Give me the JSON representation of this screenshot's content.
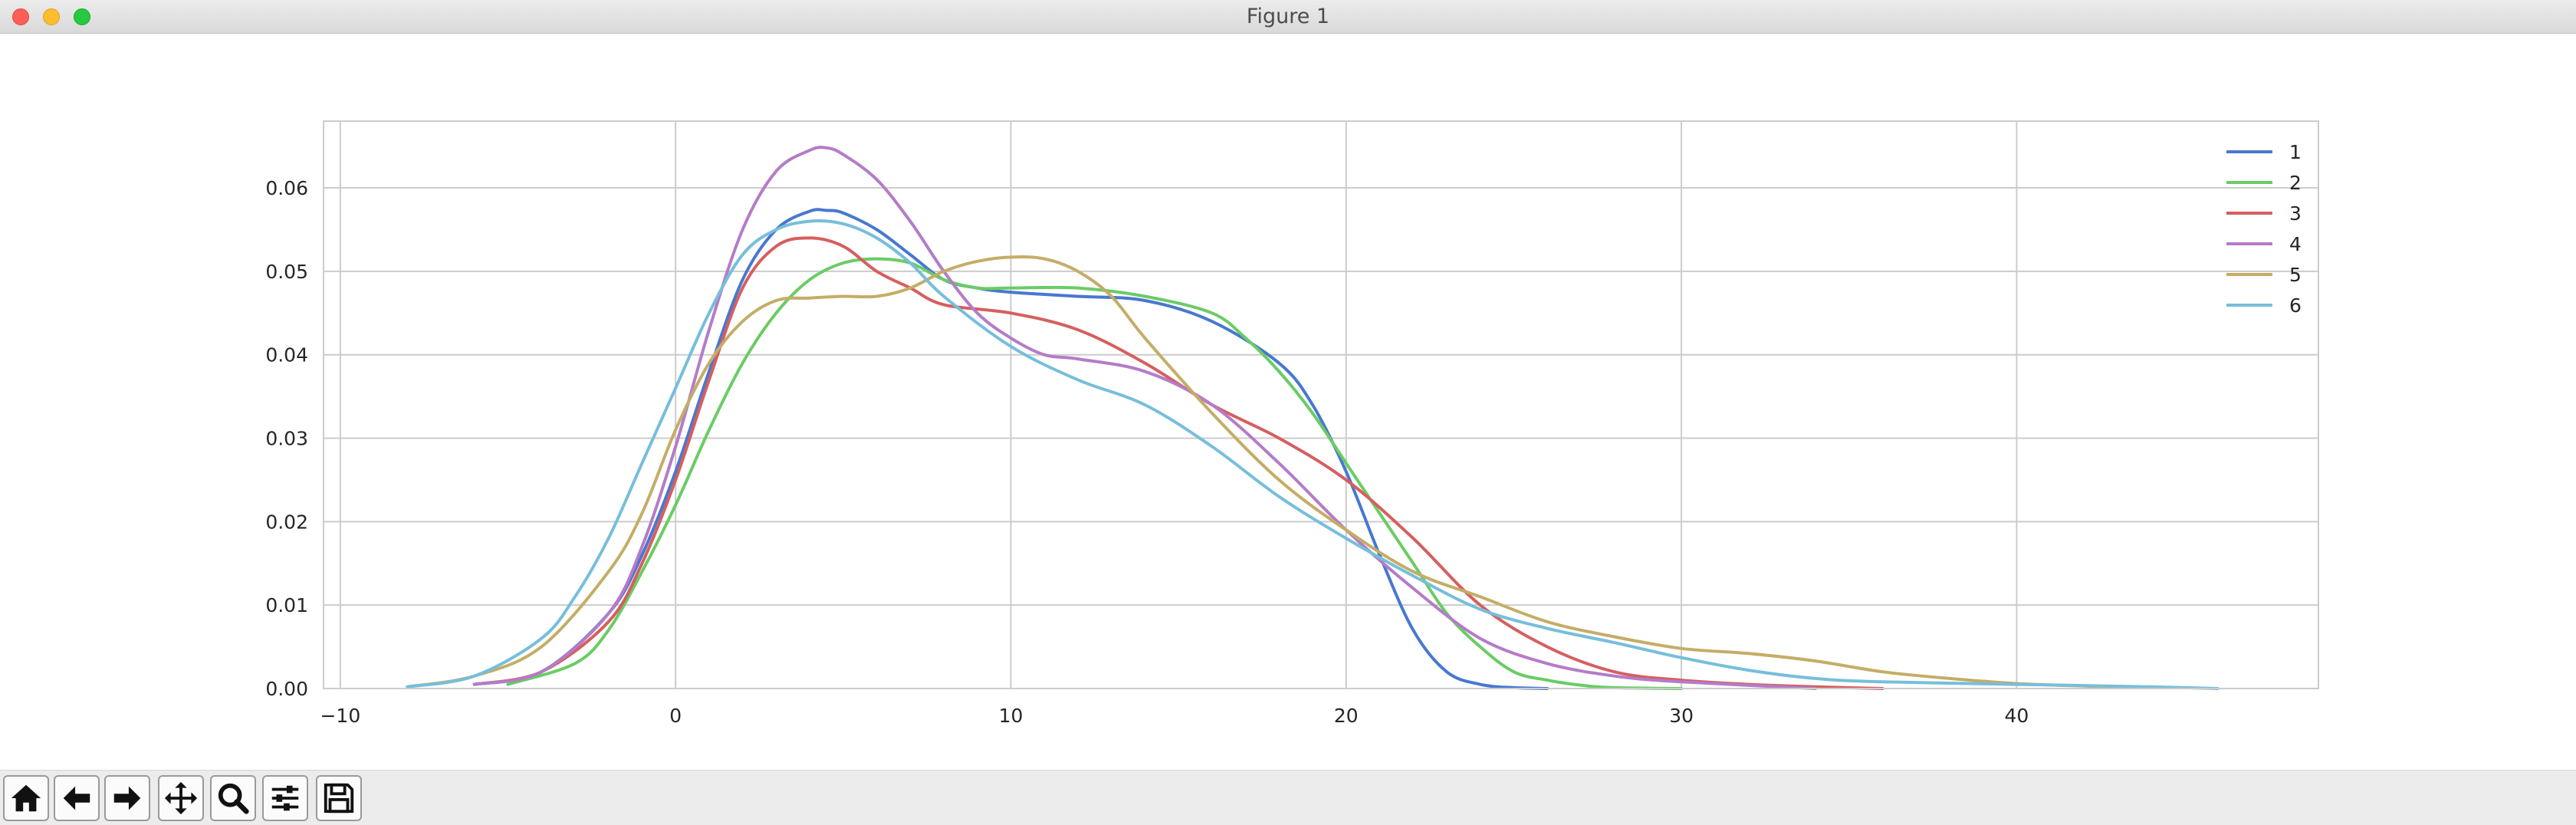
{
  "window": {
    "title": "Figure 1",
    "controls": [
      "close",
      "minimize",
      "maximize"
    ]
  },
  "toolbar": {
    "buttons": [
      {
        "name": "home",
        "icon": "home-icon"
      },
      {
        "name": "back",
        "icon": "arrow-left-icon"
      },
      {
        "name": "forward",
        "icon": "arrow-right-icon"
      },
      {
        "name": "pan",
        "icon": "move-icon"
      },
      {
        "name": "zoom",
        "icon": "magnifier-icon"
      },
      {
        "name": "configure-subplots",
        "icon": "sliders-icon"
      },
      {
        "name": "save",
        "icon": "floppy-disk-icon"
      }
    ]
  },
  "chart_data": {
    "type": "line",
    "title": "",
    "xlabel": "",
    "ylabel": "",
    "xlim": [
      -10.5,
      49
    ],
    "ylim": [
      0,
      0.068
    ],
    "xticks": [
      -10,
      0,
      10,
      20,
      30,
      40
    ],
    "yticks": [
      0.0,
      0.01,
      0.02,
      0.03,
      0.04,
      0.05,
      0.06
    ],
    "xtick_labels": [
      "−10",
      "0",
      "10",
      "20",
      "30",
      "40"
    ],
    "ytick_labels": [
      "0.00",
      "0.01",
      "0.02",
      "0.03",
      "0.04",
      "0.05",
      "0.06"
    ],
    "grid": true,
    "legend_position": "top-right",
    "series": [
      {
        "name": "1",
        "color": "#4878cf",
        "x": [
          -6,
          -4,
          -2,
          -1,
          0,
          1,
          2,
          3,
          4,
          4.5,
          5,
          6,
          7,
          8,
          9,
          10,
          12,
          14,
          16,
          18,
          19,
          20,
          21,
          22,
          23,
          24,
          25,
          26
        ],
        "y": [
          0.0005,
          0.002,
          0.009,
          0.016,
          0.026,
          0.038,
          0.049,
          0.055,
          0.0572,
          0.0573,
          0.057,
          0.055,
          0.052,
          0.049,
          0.048,
          0.0475,
          0.047,
          0.0465,
          0.044,
          0.039,
          0.034,
          0.026,
          0.016,
          0.007,
          0.002,
          0.0005,
          0.0001,
          0.0
        ]
      },
      {
        "name": "2",
        "color": "#6acc65",
        "x": [
          -5,
          -3,
          -2,
          -1,
          0,
          1,
          2,
          3,
          4,
          5,
          6,
          7,
          8,
          9,
          10,
          12,
          14,
          16,
          17,
          18,
          19,
          20,
          21,
          22,
          23,
          24,
          25,
          26,
          27,
          28,
          30
        ],
        "y": [
          0.0005,
          0.003,
          0.007,
          0.014,
          0.022,
          0.031,
          0.039,
          0.045,
          0.049,
          0.051,
          0.0515,
          0.051,
          0.049,
          0.048,
          0.048,
          0.048,
          0.047,
          0.045,
          0.042,
          0.038,
          0.033,
          0.027,
          0.021,
          0.015,
          0.009,
          0.005,
          0.002,
          0.001,
          0.0004,
          0.0001,
          0.0
        ]
      },
      {
        "name": "3",
        "color": "#d65f5f",
        "x": [
          -6,
          -4,
          -2,
          -1,
          0,
          1,
          2,
          3,
          4,
          5,
          6,
          7,
          8,
          10,
          12,
          14,
          16,
          18,
          20,
          22,
          24,
          26,
          28,
          30,
          32,
          34,
          36
        ],
        "y": [
          0.0005,
          0.002,
          0.008,
          0.015,
          0.025,
          0.037,
          0.048,
          0.053,
          0.054,
          0.053,
          0.05,
          0.048,
          0.046,
          0.045,
          0.043,
          0.039,
          0.034,
          0.03,
          0.025,
          0.018,
          0.01,
          0.005,
          0.002,
          0.001,
          0.0005,
          0.0002,
          0.0
        ]
      },
      {
        "name": "4",
        "color": "#b47cc7",
        "x": [
          -6,
          -4,
          -2,
          -1,
          0,
          1,
          2,
          3,
          4,
          4.5,
          5,
          6,
          7,
          8,
          9,
          10,
          11,
          12,
          14,
          16,
          18,
          20,
          22,
          24,
          26,
          28,
          30,
          34
        ],
        "y": [
          0.0005,
          0.002,
          0.009,
          0.017,
          0.029,
          0.043,
          0.055,
          0.062,
          0.0645,
          0.0648,
          0.064,
          0.061,
          0.056,
          0.05,
          0.045,
          0.042,
          0.04,
          0.0395,
          0.038,
          0.034,
          0.027,
          0.019,
          0.012,
          0.006,
          0.003,
          0.0015,
          0.0008,
          0.0
        ]
      },
      {
        "name": "5",
        "color": "#c4ad66",
        "x": [
          -8,
          -6,
          -4,
          -2,
          -1,
          0,
          1,
          2,
          3,
          4,
          5,
          6,
          7,
          8,
          9,
          10,
          11,
          12,
          13,
          14,
          16,
          18,
          20,
          22,
          24,
          26,
          28,
          30,
          32,
          34,
          36,
          38,
          40,
          42,
          44
        ],
        "y": [
          0.0002,
          0.0015,
          0.005,
          0.014,
          0.021,
          0.031,
          0.039,
          0.044,
          0.0465,
          0.0468,
          0.047,
          0.047,
          0.048,
          0.05,
          0.0512,
          0.0517,
          0.0515,
          0.05,
          0.047,
          0.042,
          0.033,
          0.025,
          0.019,
          0.014,
          0.011,
          0.008,
          0.0062,
          0.0048,
          0.0042,
          0.0033,
          0.002,
          0.0012,
          0.0006,
          0.0003,
          0.0001
        ]
      },
      {
        "name": "6",
        "color": "#77bedb",
        "x": [
          -8,
          -6,
          -4,
          -3,
          -2,
          -1,
          0,
          1,
          2,
          3,
          4,
          5,
          6,
          7,
          8,
          10,
          12,
          14,
          16,
          18,
          20,
          22,
          24,
          26,
          28,
          30,
          32,
          34,
          36,
          40,
          44,
          46
        ],
        "y": [
          0.0002,
          0.0015,
          0.006,
          0.011,
          0.018,
          0.027,
          0.036,
          0.045,
          0.052,
          0.055,
          0.056,
          0.0557,
          0.054,
          0.051,
          0.047,
          0.041,
          0.037,
          0.034,
          0.029,
          0.023,
          0.018,
          0.0135,
          0.0095,
          0.0072,
          0.0055,
          0.0037,
          0.0022,
          0.0012,
          0.0008,
          0.0005,
          0.0002,
          0.0
        ]
      }
    ]
  }
}
